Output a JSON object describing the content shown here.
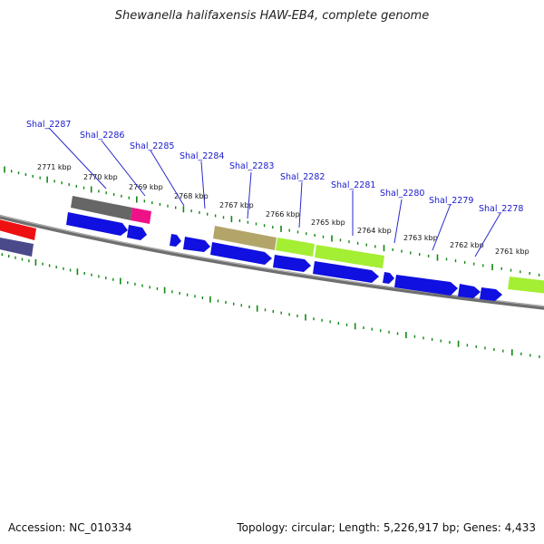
{
  "title": "Shewanella halifaxensis HAW-EB4, complete genome",
  "footer": {
    "accession": "Accession: NC_010334",
    "summary": "Topology: circular; Length: 5,226,917 bp; Genes: 4,433"
  },
  "colors": {
    "backbone": "#7a7a7a",
    "cds_forward": "#1010e0",
    "ruler": "#118811",
    "label_line": "#1a1acc",
    "red_feature": "#ee1111",
    "purple_feature": "#555599",
    "gray_feature": "#6b6b6b",
    "magenta_feature": "#ee1188",
    "tan_feature": "#b5a86a",
    "green_feature": "#a4ee33"
  },
  "ruler_labels": [
    "2771 kbp",
    "2770 kbp",
    "2769 kbp",
    "2768 kbp",
    "2767 kbp",
    "2766 kbp",
    "2765 kbp",
    "2764 kbp",
    "2763 kbp",
    "2762 kbp",
    "2761 kbp"
  ],
  "gene_labels": [
    "Shal_2287",
    "Shal_2286",
    "Shal_2285",
    "Shal_2284",
    "Shal_2283",
    "Shal_2282",
    "Shal_2281",
    "Shal_2280",
    "Shal_2279",
    "Shal_2278"
  ]
}
